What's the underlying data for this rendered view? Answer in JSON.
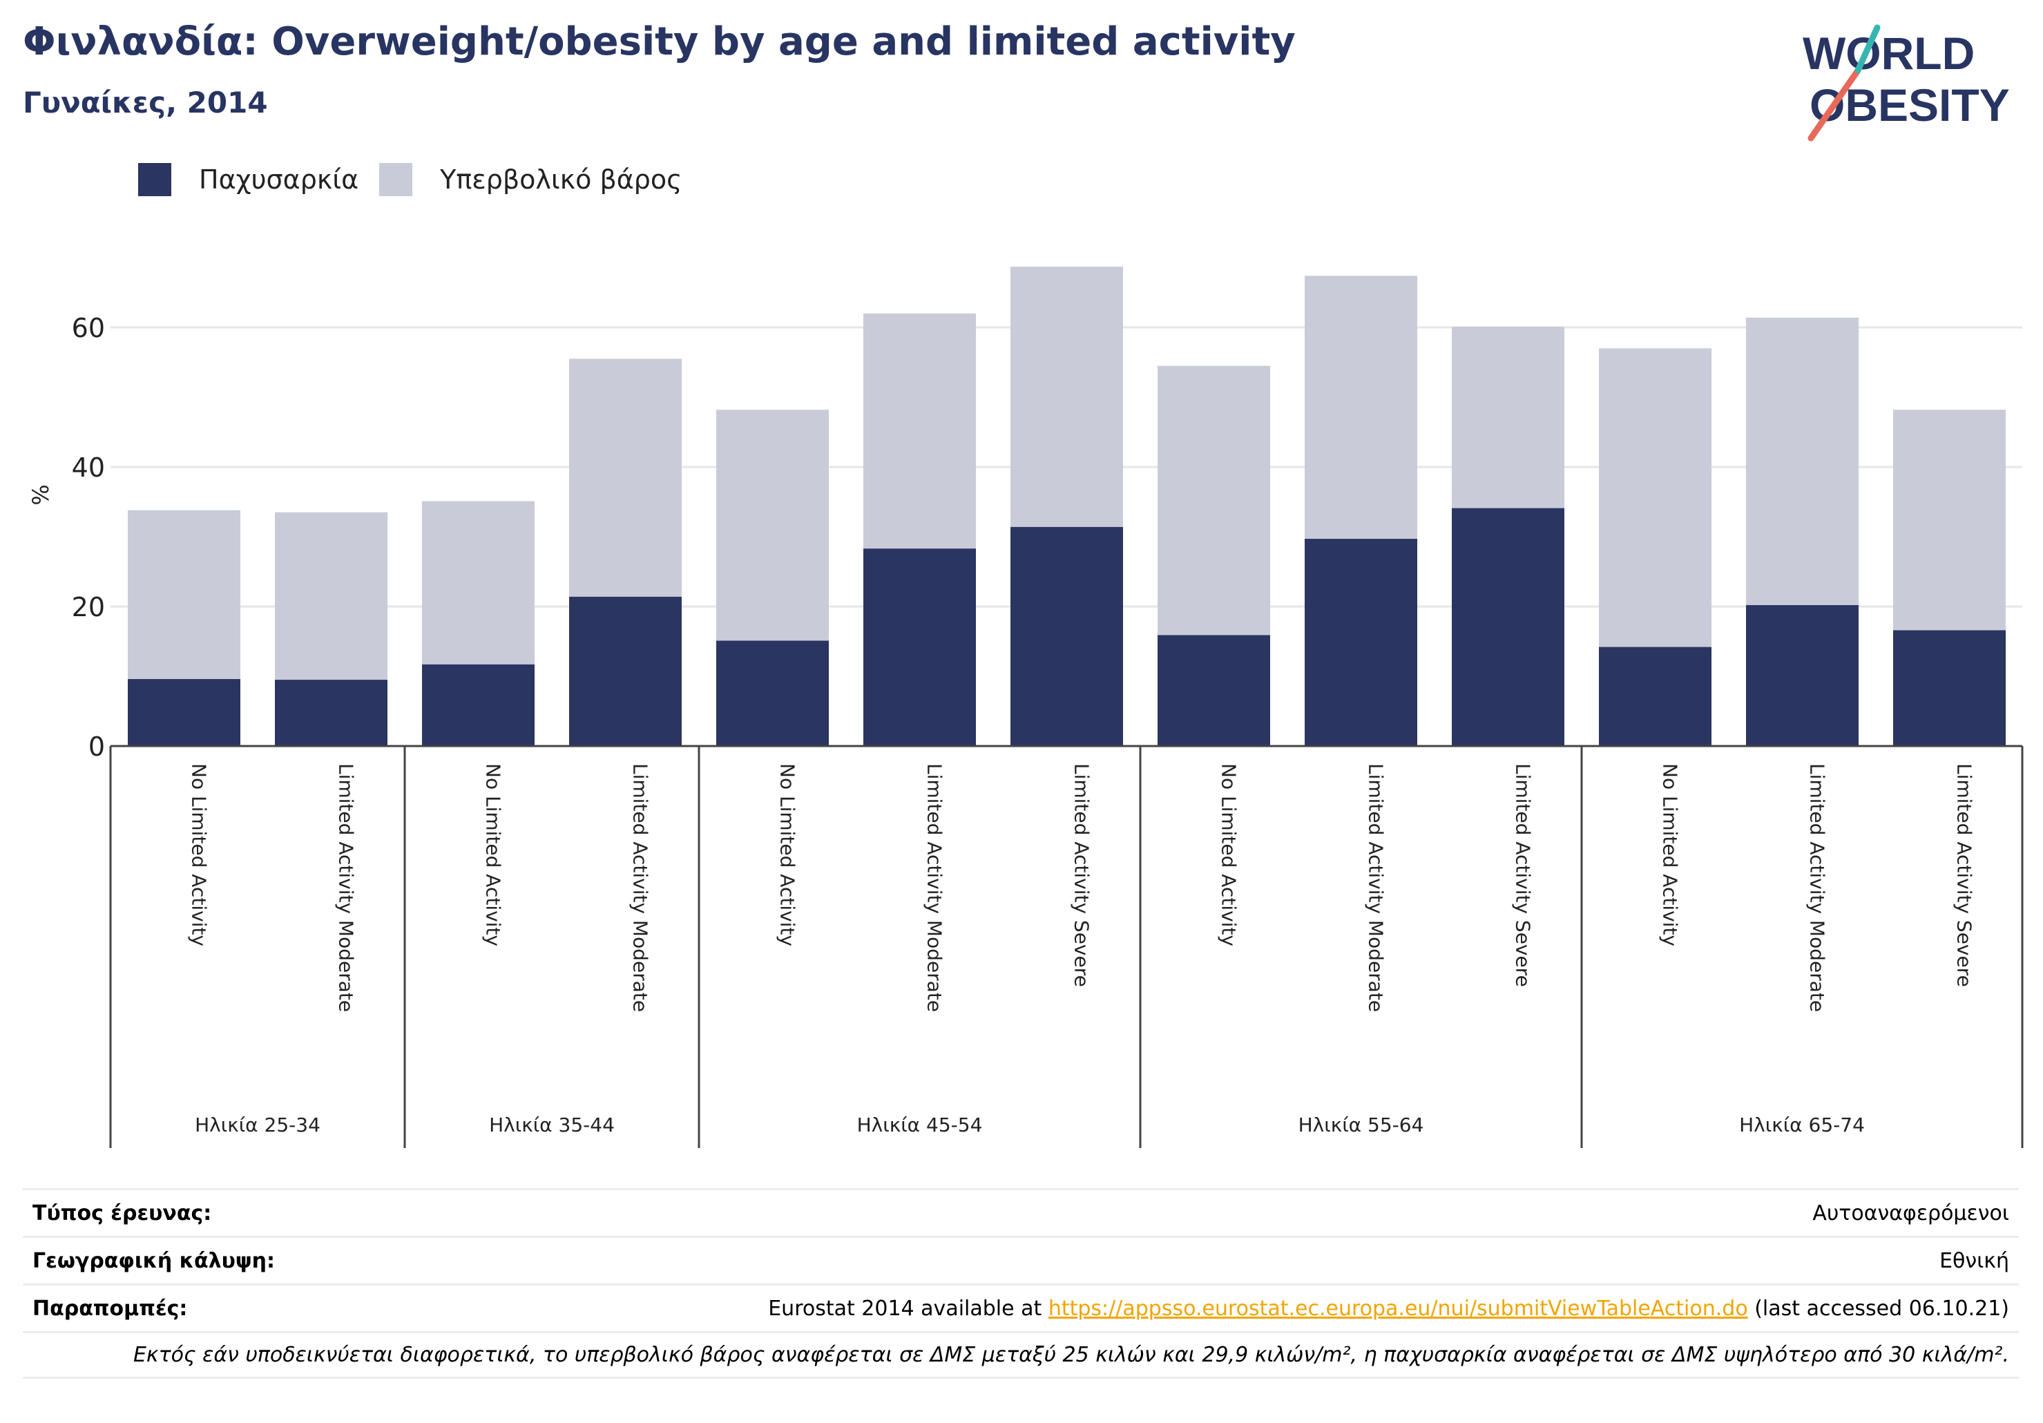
{
  "header": {
    "title": "Φινλανδία: Overweight/obesity by age and limited activity",
    "subtitle": "Γυναίκες, 2014"
  },
  "logo": {
    "line1": "WORLD",
    "line2": "OBESITY"
  },
  "legend": [
    {
      "label": "Παχυσαρκία",
      "color": "#2a3561"
    },
    {
      "label": "Υπερβολικό βάρος",
      "color": "#c9cbd8"
    }
  ],
  "chart_data": {
    "type": "bar",
    "stacked": true,
    "ylabel": "%",
    "xlabel": "",
    "ylim": [
      0,
      72
    ],
    "yticks": [
      0,
      20,
      40,
      60
    ],
    "grid": true,
    "legend_position": "top-left",
    "groups": [
      {
        "label": "Ηλικία 25-34",
        "categories": [
          "No Limited Activity",
          "Limited Activity Moderate"
        ]
      },
      {
        "label": "Ηλικία 35-44",
        "categories": [
          "No Limited Activity",
          "Limited Activity Moderate"
        ]
      },
      {
        "label": "Ηλικία 45-54",
        "categories": [
          "No Limited Activity",
          "Limited Activity Moderate",
          "Limited Activity Severe"
        ]
      },
      {
        "label": "Ηλικία 55-64",
        "categories": [
          "No Limited Activity",
          "Limited Activity Moderate",
          "Limited Activity Severe"
        ]
      },
      {
        "label": "Ηλικία 65-74",
        "categories": [
          "No Limited Activity",
          "Limited Activity Moderate",
          "Limited Activity Severe"
        ]
      }
    ],
    "series": [
      {
        "name": "Παχυσαρκία",
        "color": "#2a3561",
        "values": [
          9.6,
          9.5,
          11.7,
          21.4,
          15.1,
          28.3,
          31.4,
          15.9,
          29.7,
          34.1,
          14.2,
          20.2,
          16.6
        ]
      },
      {
        "name": "Υπερβολικό βάρος",
        "color": "#c9cbd8",
        "values": [
          24.2,
          24.0,
          23.4,
          34.1,
          33.1,
          33.7,
          37.3,
          38.6,
          37.7,
          26.0,
          42.8,
          41.2,
          31.6
        ]
      }
    ]
  },
  "footer": {
    "survey_type": {
      "label": "Τύπος έρευνας:",
      "value": "Αυτοαναφερόμενοι"
    },
    "coverage": {
      "label": "Γεωγραφική κάλυψη:",
      "value": "Εθνική"
    },
    "references": {
      "label": "Παραπομπές:",
      "prefix": "Eurostat 2014 available at ",
      "link": "https://appsso.eurostat.ec.europa.eu/nui/submitViewTableAction.do",
      "suffix": " (last accessed 06.10.21)"
    },
    "note": "Εκτός εάν υποδεικνύεται διαφορετικά, το υπερβολικό βάρος αναφέρεται σε ΔΜΣ μεταξύ 25 κιλών και 29,9 κιλών/m², η παχυσαρκία αναφέρεται σε ΔΜΣ υψηλότερο από 30 κιλά/m²."
  }
}
